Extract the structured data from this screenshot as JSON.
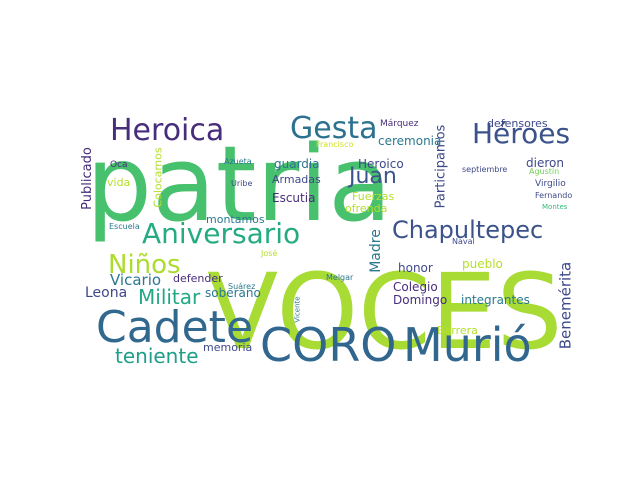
{
  "words": [
    {
      "text": "patria",
      "color": "#48c16e",
      "rotation": 0
    },
    {
      "text": "VOCES",
      "color": "#a8db34",
      "rotation": 90
    },
    {
      "text": "CORO",
      "color": "#31668e",
      "rotation": 0
    },
    {
      "text": "Murió",
      "color": "#31668e",
      "rotation": 0
    },
    {
      "text": "Cadete",
      "color": "#31688e",
      "rotation": 0
    },
    {
      "text": "Heroica",
      "color": "#472d7b",
      "rotation": 0
    },
    {
      "text": "Gesta",
      "color": "#2c728e",
      "rotation": 0
    },
    {
      "text": "Héroes",
      "color": "#3b528b",
      "rotation": 0
    },
    {
      "text": "Aniversario",
      "color": "#25ab82",
      "rotation": 0
    },
    {
      "text": "Chapultepec",
      "color": "#3b528b",
      "rotation": 0
    },
    {
      "text": "Niños",
      "color": "#addc30",
      "rotation": 0
    },
    {
      "text": "Juan",
      "color": "#3b528b",
      "rotation": 0
    },
    {
      "text": "Militar",
      "color": "#22a884",
      "rotation": 0
    },
    {
      "text": "teniente",
      "color": "#1f9e89",
      "rotation": 0
    },
    {
      "text": "Vicario",
      "color": "#2a788e",
      "rotation": 0
    },
    {
      "text": "Leona",
      "color": "#3e4989",
      "rotation": 0
    },
    {
      "text": "Benemérita",
      "color": "#3e4989",
      "rotation": 90
    },
    {
      "text": "Madre",
      "color": "#2a788e",
      "rotation": 90
    },
    {
      "text": "Participamos",
      "color": "#3e4989",
      "rotation": 90
    },
    {
      "text": "Publicado",
      "color": "#472d7b",
      "rotation": 90
    },
    {
      "text": "Colocamos",
      "color": "#b5de2b",
      "rotation": 90
    },
    {
      "text": "defensores",
      "color": "#3e4989",
      "rotation": 0
    },
    {
      "text": "ceremonia",
      "color": "#2a788e",
      "rotation": 0
    },
    {
      "text": "Márquez",
      "color": "#472d7b",
      "rotation": 0
    },
    {
      "text": "Francisco",
      "color": "#d2e21b",
      "rotation": 0
    },
    {
      "text": "guardia",
      "color": "#2c728e",
      "rotation": 0
    },
    {
      "text": "Heroico",
      "color": "#3e4989",
      "rotation": 0
    },
    {
      "text": "dieron",
      "color": "#3e4989",
      "rotation": 0
    },
    {
      "text": "septiembre",
      "color": "#3e4989",
      "rotation": 0
    },
    {
      "text": "Agustín",
      "color": "#73d056",
      "rotation": 0
    },
    {
      "text": "Armadas",
      "color": "#3e4989",
      "rotation": 0
    },
    {
      "text": "Virgilio",
      "color": "#3e4989",
      "rotation": 0
    },
    {
      "text": "Fuerzas",
      "color": "#b5de2b",
      "rotation": 0
    },
    {
      "text": "Fernando",
      "color": "#3e4989",
      "rotation": 0
    },
    {
      "text": "Escutia",
      "color": "#472d7b",
      "rotation": 0
    },
    {
      "text": "ofrenda",
      "color": "#b5de2b",
      "rotation": 0
    },
    {
      "text": "Montes",
      "color": "#35b779",
      "rotation": 0
    },
    {
      "text": "Azueta",
      "color": "#2a788e",
      "rotation": 0
    },
    {
      "text": "Oca",
      "color": "#472d7b",
      "rotation": 0
    },
    {
      "text": "vida",
      "color": "#b5de2b",
      "rotation": 0
    },
    {
      "text": "Uribe",
      "color": "#3e4989",
      "rotation": 0
    },
    {
      "text": "montamos",
      "color": "#2a788e",
      "rotation": 0
    },
    {
      "text": "Escuela",
      "color": "#2a788e",
      "rotation": 0
    },
    {
      "text": "Naval",
      "color": "#3e4989",
      "rotation": 0
    },
    {
      "text": "defender",
      "color": "#472d7b",
      "rotation": 0
    },
    {
      "text": "José",
      "color": "#b5de2b",
      "rotation": 0
    },
    {
      "text": "honor",
      "color": "#3e4989",
      "rotation": 0
    },
    {
      "text": "pueblo",
      "color": "#b5de2b",
      "rotation": 0
    },
    {
      "text": "soberano",
      "color": "#2a788e",
      "rotation": 0
    },
    {
      "text": "Melgar",
      "color": "#2a788e",
      "rotation": 0
    },
    {
      "text": "Suárez",
      "color": "#2a788e",
      "rotation": 0
    },
    {
      "text": "Colegio",
      "color": "#472d7b",
      "rotation": 0
    },
    {
      "text": "Domingo",
      "color": "#472d7b",
      "rotation": 0
    },
    {
      "text": "integrantes",
      "color": "#2a788e",
      "rotation": 0
    },
    {
      "text": "Vicente",
      "color": "#2a788e",
      "rotation": 90
    },
    {
      "text": "Barrera",
      "color": "#b5de2b",
      "rotation": 0
    },
    {
      "text": "memoria",
      "color": "#3e4989",
      "rotation": 0
    }
  ]
}
